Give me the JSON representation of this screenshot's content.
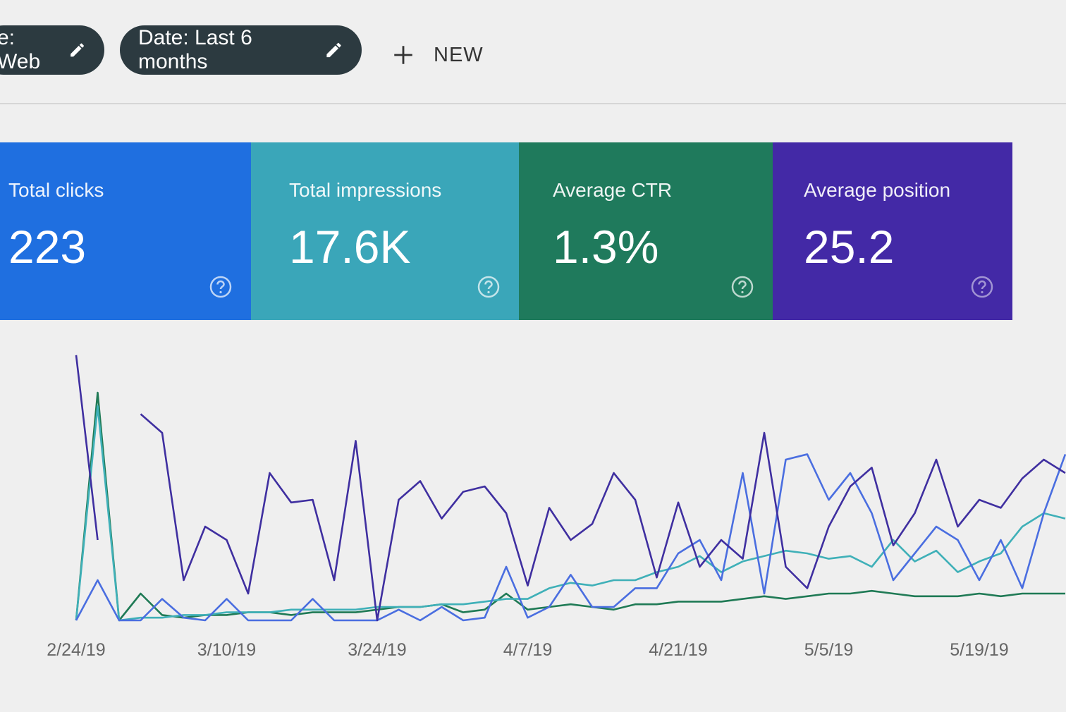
{
  "filters": [
    {
      "label": "e: Web"
    },
    {
      "label": "Date: Last 6 months"
    }
  ],
  "new_button": "NEW",
  "cards": [
    {
      "title": "Total clicks",
      "value": "223"
    },
    {
      "title": "Total impressions",
      "value": "17.6K"
    },
    {
      "title": "Average CTR",
      "value": "1.3%"
    },
    {
      "title": "Average position",
      "value": "25.2"
    }
  ],
  "chart_data": {
    "type": "line",
    "categories": [
      "2/24/19",
      null,
      null,
      null,
      null,
      null,
      null,
      "3/10/19",
      null,
      null,
      null,
      null,
      null,
      null,
      "3/24/19",
      null,
      null,
      null,
      null,
      null,
      null,
      "4/7/19",
      null,
      null,
      null,
      null,
      null,
      null,
      "4/21/19",
      null,
      null,
      null,
      null,
      null,
      null,
      "5/5/19",
      null,
      null,
      null,
      null,
      null,
      null,
      "5/19/19",
      null,
      null,
      null,
      null
    ],
    "ylim": [
      0,
      100
    ],
    "series": [
      {
        "color": "#3f2fa0",
        "values": [
          99,
          30,
          null,
          77,
          70,
          15,
          35,
          30,
          10,
          55,
          44,
          45,
          15,
          67,
          0,
          45,
          52,
          38,
          48,
          50,
          40,
          13,
          42,
          30,
          36,
          55,
          45,
          16,
          44,
          20,
          30,
          23,
          70,
          20,
          12,
          35,
          50,
          57,
          28,
          40,
          60,
          35,
          45,
          42,
          53,
          60,
          55
        ]
      },
      {
        "color": "#4a6ee0",
        "values": [
          0,
          15,
          0,
          0,
          8,
          1,
          0,
          8,
          0,
          0,
          0,
          8,
          0,
          0,
          0,
          4,
          0,
          5,
          0,
          1,
          20,
          1,
          5,
          17,
          5,
          5,
          12,
          12,
          25,
          30,
          15,
          55,
          10,
          60,
          62,
          45,
          55,
          40,
          15,
          25,
          35,
          30,
          15,
          30,
          12,
          40,
          62
        ]
      },
      {
        "color": "#3fb0b8",
        "values": [
          0,
          80,
          0,
          1,
          1,
          2,
          2,
          3,
          3,
          3,
          4,
          4,
          4,
          4,
          5,
          5,
          5,
          6,
          6,
          7,
          8,
          8,
          12,
          14,
          13,
          15,
          15,
          18,
          20,
          24,
          18,
          22,
          24,
          26,
          25,
          23,
          24,
          20,
          30,
          22,
          26,
          18,
          22,
          25,
          35,
          40,
          38
        ]
      },
      {
        "color": "#1f7a55",
        "values": [
          0,
          85,
          0,
          10,
          2,
          1,
          2,
          2,
          3,
          3,
          2,
          3,
          3,
          3,
          4,
          5,
          5,
          6,
          3,
          4,
          10,
          4,
          5,
          6,
          5,
          4,
          6,
          6,
          7,
          7,
          7,
          8,
          9,
          8,
          9,
          10,
          10,
          11,
          10,
          9,
          9,
          9,
          10,
          9,
          10,
          10,
          10
        ]
      }
    ]
  }
}
